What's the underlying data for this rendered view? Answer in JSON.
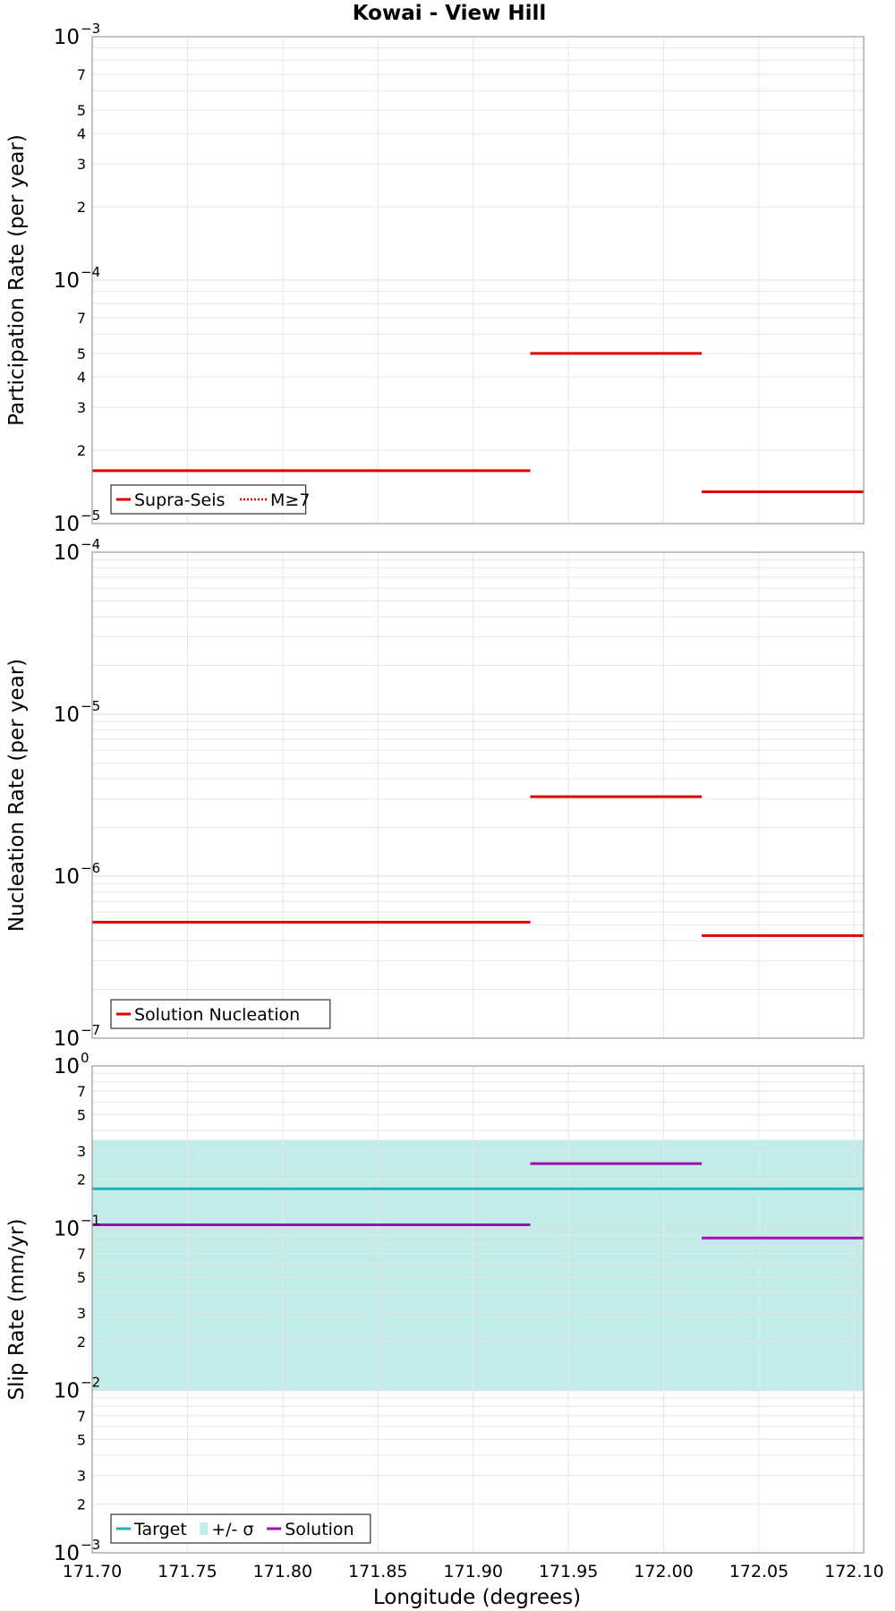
{
  "chart_data": [
    {
      "type": "line",
      "title": "Kowai - View Hill",
      "ylabel": "Participation Rate (per year)",
      "xlabel": "",
      "yscale": "log",
      "ylim": [
        1e-05,
        0.001
      ],
      "xlim": [
        171.7,
        172.105
      ],
      "grid": true,
      "legend_position": "bottom-left",
      "legend": [
        {
          "label": "Supra-Seis",
          "color": "#e00000",
          "style": "solid"
        },
        {
          "label": "M≥7",
          "color": "#e00000",
          "style": "dotted"
        }
      ],
      "series": [
        {
          "name": "Supra-Seis",
          "color": "#e00000",
          "style": "solid",
          "segments": [
            {
              "x0": 171.7,
              "x1": 171.93,
              "y": 1.65e-05
            },
            {
              "x0": 171.93,
              "x1": 172.02,
              "y": 5e-05
            },
            {
              "x0": 172.02,
              "x1": 172.105,
              "y": 1.35e-05
            }
          ]
        },
        {
          "name": "M≥7",
          "color": "#e00000",
          "style": "dotted",
          "segments": [
            {
              "x0": 171.7,
              "x1": 171.93,
              "y": 1.65e-05
            },
            {
              "x0": 171.93,
              "x1": 172.02,
              "y": 5e-05
            },
            {
              "x0": 172.02,
              "x1": 172.105,
              "y": 1.35e-05
            }
          ]
        }
      ]
    },
    {
      "type": "line",
      "title": "",
      "ylabel": "Nucleation Rate (per year)",
      "xlabel": "",
      "yscale": "log",
      "ylim": [
        1e-07,
        0.0001
      ],
      "xlim": [
        171.7,
        172.105
      ],
      "grid": true,
      "legend_position": "bottom-left",
      "legend": [
        {
          "label": "Solution Nucleation",
          "color": "#e00000",
          "style": "solid"
        }
      ],
      "series": [
        {
          "name": "Solution Nucleation",
          "color": "#e00000",
          "style": "solid",
          "segments": [
            {
              "x0": 171.7,
              "x1": 171.93,
              "y": 5.2e-07
            },
            {
              "x0": 171.93,
              "x1": 172.02,
              "y": 3.1e-06
            },
            {
              "x0": 172.02,
              "x1": 172.105,
              "y": 4.3e-07
            }
          ]
        }
      ]
    },
    {
      "type": "line",
      "title": "",
      "ylabel": "Slip Rate (mm/yr)",
      "xlabel": "Longitude (degrees)",
      "yscale": "log",
      "ylim": [
        0.001,
        1
      ],
      "xlim": [
        171.7,
        172.105
      ],
      "x_ticks": [
        "171.70",
        "171.75",
        "171.80",
        "171.85",
        "171.90",
        "171.95",
        "172.00",
        "172.05",
        "172.10"
      ],
      "grid": true,
      "legend_position": "bottom-left",
      "legend": [
        {
          "label": "Target",
          "color": "#22b0b0",
          "style": "solid"
        },
        {
          "label": "+/- σ",
          "color": "#c2ecea",
          "style": "band"
        },
        {
          "label": "Solution",
          "color": "#a010b0",
          "style": "solid"
        }
      ],
      "band": {
        "name": "+/- σ",
        "color": "#c2ecea",
        "x0": 171.7,
        "x1": 172.105,
        "y_low": 0.01,
        "y_high": 0.35
      },
      "series": [
        {
          "name": "Target",
          "color": "#22b0b0",
          "style": "solid",
          "segments": [
            {
              "x0": 171.7,
              "x1": 172.105,
              "y": 0.175
            }
          ]
        },
        {
          "name": "Solution",
          "color": "#a010b0",
          "style": "solid",
          "segments": [
            {
              "x0": 171.7,
              "x1": 171.93,
              "y": 0.105
            },
            {
              "x0": 171.93,
              "x1": 172.02,
              "y": 0.25
            },
            {
              "x0": 172.02,
              "x1": 172.105,
              "y": 0.087
            }
          ]
        }
      ]
    }
  ]
}
